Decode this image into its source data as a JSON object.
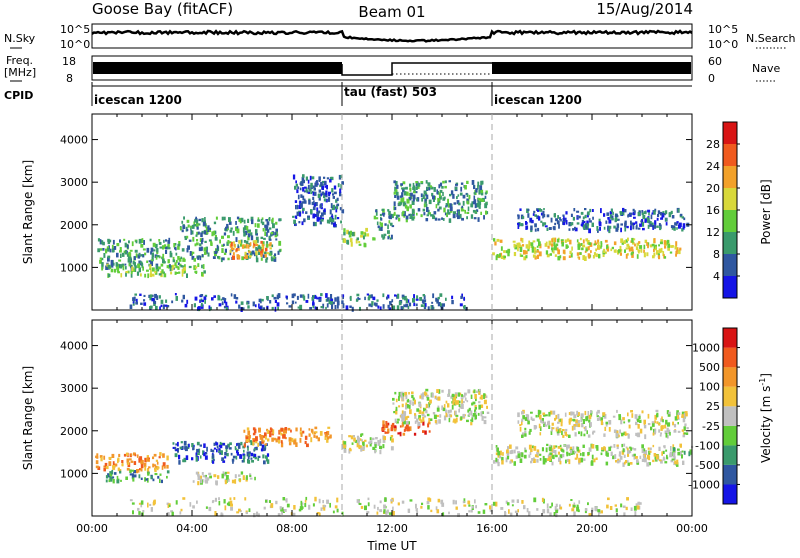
{
  "header": {
    "station": "Goose Bay (fitACF)",
    "beam": "Beam 01",
    "date": "15/Aug/2014"
  },
  "top_panels": {
    "nsky_label": "N.Sky",
    "nsky_ticks": [
      "10^5",
      "10^0"
    ],
    "nsearch_label": "N.Search",
    "nsearch_ticks": [
      "10^5",
      "10^0"
    ],
    "freq_label_1": "Freq.",
    "freq_label_2": "[MHz]",
    "freq_ticks": [
      "18",
      "8"
    ],
    "nave_label": "Nave",
    "nave_ticks": [
      "60",
      "0"
    ],
    "cpid_label": "CPID",
    "cpid_segments": [
      {
        "label": "icescan 1200",
        "start_hour": 0,
        "end_hour": 10
      },
      {
        "label": "tau (fast) 503",
        "start_hour": 10,
        "end_hour": 16
      },
      {
        "label": "icescan 1200",
        "start_hour": 16,
        "end_hour": 24
      }
    ]
  },
  "chart_data": [
    {
      "type": "heatmap",
      "panel": "power",
      "ylabel": "Slant Range [km]",
      "xlabel": "",
      "ylim": [
        0,
        4600
      ],
      "xlim_hours": [
        0,
        24
      ],
      "yticks": [
        1000,
        2000,
        3000,
        4000
      ],
      "colorbar_label": "Power [dB]",
      "colorbar_ticks": [
        "4",
        "8",
        "12",
        "16",
        "20",
        "24",
        "28"
      ],
      "colorbar_colors": [
        "#1515e6",
        "#2f57a0",
        "#3a9a6c",
        "#62cd3a",
        "#d8d83a",
        "#f2a12a",
        "#f05a1e",
        "#d81414"
      ],
      "echo_regions": [
        {
          "t0": 0.2,
          "t1": 3.5,
          "r0": 1000,
          "r1": 1700,
          "level": 2
        },
        {
          "t0": 0.5,
          "t1": 4.5,
          "r0": 850,
          "r1": 1100,
          "level": 3
        },
        {
          "t0": 3.5,
          "t1": 7.5,
          "r0": 1200,
          "r1": 2200,
          "level": 2
        },
        {
          "t0": 5.5,
          "t1": 7.2,
          "r0": 1250,
          "r1": 1650,
          "level": 5
        },
        {
          "t0": 8.0,
          "t1": 10.0,
          "r0": 2000,
          "r1": 3200,
          "level": 1
        },
        {
          "t0": 10.0,
          "t1": 11.0,
          "r0": 1550,
          "r1": 1950,
          "level": 3
        },
        {
          "t0": 11.2,
          "t1": 12.0,
          "r0": 1700,
          "r1": 2400,
          "level": 2
        },
        {
          "t0": 12.0,
          "t1": 15.8,
          "r0": 2150,
          "r1": 3050,
          "level": 2
        },
        {
          "t0": 16.0,
          "t1": 23.5,
          "r0": 1250,
          "r1": 1700,
          "level": 4
        },
        {
          "t0": 17.0,
          "t1": 23.8,
          "r0": 1900,
          "r1": 2400,
          "level": 1
        },
        {
          "t0": 1.5,
          "t1": 15.0,
          "r0": 60,
          "r1": 400,
          "level": 1
        }
      ]
    },
    {
      "type": "heatmap",
      "panel": "velocity",
      "ylabel": "Slant Range [km]",
      "xlabel": "Time UT",
      "ylim": [
        0,
        4600
      ],
      "xlim_hours": [
        0,
        24
      ],
      "yticks": [
        1000,
        2000,
        3000,
        4000
      ],
      "xticks": [
        "00:00",
        "04:00",
        "08:00",
        "12:00",
        "16:00",
        "20:00",
        "00:00"
      ],
      "colorbar_label": "Velocity [m s^-1]",
      "colorbar_ticks": [
        "1000",
        "500",
        "100",
        "25",
        "-25",
        "-100",
        "-500",
        "-1000"
      ],
      "colorbar_colors": [
        "#1515e6",
        "#2f57a0",
        "#3a9a6c",
        "#62cd3a",
        "#c0c0c0",
        "#f2c23a",
        "#f2962a",
        "#f05a1e",
        "#d81414"
      ],
      "echo_regions": [
        {
          "t0": 0.1,
          "t1": 3.0,
          "r0": 1100,
          "r1": 1500,
          "level": 6
        },
        {
          "t0": 0.5,
          "t1": 3.0,
          "r0": 850,
          "r1": 1100,
          "level": 2
        },
        {
          "t0": 3.2,
          "t1": 7.0,
          "r0": 1300,
          "r1": 1800,
          "level": 1
        },
        {
          "t0": 6.0,
          "t1": 9.5,
          "r0": 1700,
          "r1": 2100,
          "level": 6
        },
        {
          "t0": 4.0,
          "t1": 6.5,
          "r0": 800,
          "r1": 1050,
          "level": 4
        },
        {
          "t0": 10.0,
          "t1": 12.0,
          "r0": 1550,
          "r1": 1950,
          "level": 4
        },
        {
          "t0": 11.5,
          "t1": 13.5,
          "r0": 1950,
          "r1": 2250,
          "level": 7
        },
        {
          "t0": 12.0,
          "t1": 15.8,
          "r0": 2200,
          "r1": 3000,
          "level": 4
        },
        {
          "t0": 16.0,
          "t1": 23.6,
          "r0": 1250,
          "r1": 1700,
          "level": 4
        },
        {
          "t0": 17.0,
          "t1": 23.8,
          "r0": 1900,
          "r1": 2500,
          "level": 4
        },
        {
          "t0": 23.2,
          "t1": 24.0,
          "r0": 1450,
          "r1": 1650,
          "level": 3
        },
        {
          "t0": 1.5,
          "t1": 22.0,
          "r0": 60,
          "r1": 450,
          "level": 4
        }
      ]
    }
  ]
}
